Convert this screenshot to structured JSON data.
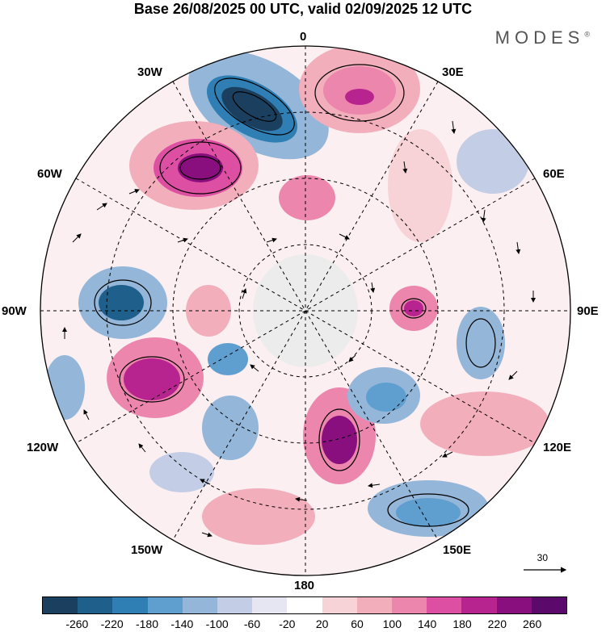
{
  "title": "Base 26/08/2025 00 UTC, valid 02/09/2025 12 UTC",
  "brand": "MODES",
  "brand_mark": "®",
  "longitude_labels": {
    "n": "0",
    "e30": "30E",
    "e60": "60E",
    "e90": "90E",
    "e120": "120E",
    "e150": "150E",
    "s": "180",
    "w150": "150W",
    "w120": "120W",
    "w90": "90W",
    "w60": "60W",
    "w30": "30W"
  },
  "vector_reference": "30",
  "colorbar": {
    "ticks": [
      "-260",
      "-220",
      "-180",
      "-140",
      "-100",
      "-60",
      "-20",
      "20",
      "60",
      "100",
      "140",
      "180",
      "220",
      "260"
    ],
    "colors": [
      "#1b3f5e",
      "#1f5f8b",
      "#2f7fb5",
      "#5e9fcf",
      "#93b6d9",
      "#c3cde6",
      "#e6e6f2",
      "#ffffff",
      "#f7d2d6",
      "#f2aebb",
      "#ec86ad",
      "#dd4fa2",
      "#b8248f",
      "#8a0f7e",
      "#5b0a6b"
    ]
  }
}
